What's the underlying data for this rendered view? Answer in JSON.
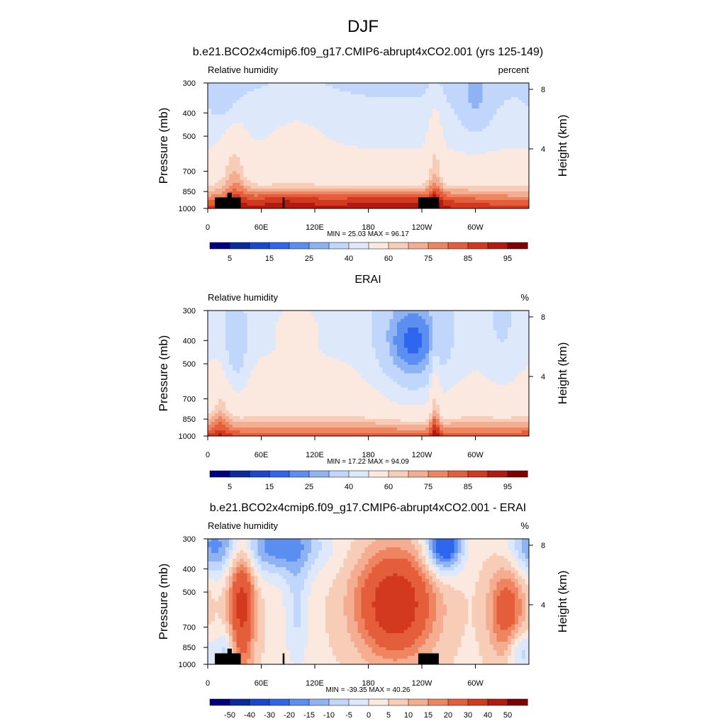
{
  "figure_title": "DJF",
  "colors": {
    "rh": [
      "#000080",
      "#0a2aa0",
      "#1848d0",
      "#2e66ee",
      "#5a8ef0",
      "#8fb2f2",
      "#c0d6fa",
      "#dde9fb",
      "#fbe9df",
      "#f8cdb8",
      "#f4ad90",
      "#ee8560",
      "#e45e3c",
      "#d2391e",
      "#b01a10",
      "#7f0000"
    ],
    "diff": [
      "#000080",
      "#0a2aa0",
      "#1848d0",
      "#2e66ee",
      "#5a8ef0",
      "#8fb2f2",
      "#c0d6fa",
      "#dde9fb",
      "#fbe9df",
      "#f8cdb8",
      "#f4ad90",
      "#ee8560",
      "#e45e3c",
      "#d2391e",
      "#b01a10",
      "#7f0000"
    ],
    "topography": "#000000"
  },
  "chart_data": [
    {
      "type": "heatmap",
      "title": "b.e21.BCO2x4cmip6.f09_g17.CMIP6-abrupt4xCO2.001 (yrs 125-149)",
      "left_label": "Relative humidity",
      "right_label": "percent",
      "ylabel": "Pressure (mb)",
      "y2label": "Height (km)",
      "xticks": [
        "0",
        "60E",
        "120E",
        "180",
        "120W",
        "60W"
      ],
      "xtick_values": [
        0,
        60,
        120,
        180,
        240,
        300
      ],
      "xlim": [
        0,
        360
      ],
      "yticks": [
        "300",
        "400",
        "500",
        "700",
        "850",
        "1000"
      ],
      "ytick_values": [
        300,
        400,
        500,
        700,
        850,
        1000
      ],
      "ylim": [
        1000,
        300
      ],
      "yscale": "log",
      "y2ticks": [
        "8",
        "4"
      ],
      "y2tick_values": [
        8,
        4
      ],
      "stats": "MIN =  25.03  MAX =  96.17",
      "min": 25.03,
      "max": 96.17,
      "colorbar_labels": [
        "5",
        "15",
        "25",
        "40",
        "60",
        "75",
        "85",
        "95"
      ],
      "levels": [
        0,
        5,
        10,
        15,
        20,
        25,
        30,
        40,
        50,
        60,
        65,
        70,
        75,
        80,
        85,
        90,
        95,
        100
      ],
      "model": "rh_model"
    },
    {
      "type": "heatmap",
      "title": "ERAI",
      "left_label": "Relative humidity",
      "right_label": "%",
      "ylabel": "Pressure (mb)",
      "y2label": "Height (km)",
      "xticks": [
        "0",
        "60E",
        "120E",
        "180",
        "120W",
        "60W"
      ],
      "xtick_values": [
        0,
        60,
        120,
        180,
        240,
        300
      ],
      "xlim": [
        0,
        360
      ],
      "yticks": [
        "300",
        "400",
        "500",
        "700",
        "850",
        "1000"
      ],
      "ytick_values": [
        300,
        400,
        500,
        700,
        850,
        1000
      ],
      "ylim": [
        1000,
        300
      ],
      "yscale": "log",
      "y2ticks": [
        "8",
        "4"
      ],
      "y2tick_values": [
        8,
        4
      ],
      "stats": "MIN =  17.22  MAX =  94.09",
      "min": 17.22,
      "max": 94.09,
      "colorbar_labels": [
        "5",
        "15",
        "25",
        "40",
        "60",
        "75",
        "85",
        "95"
      ],
      "levels": [
        0,
        5,
        10,
        15,
        20,
        25,
        30,
        40,
        50,
        60,
        65,
        70,
        75,
        80,
        85,
        90,
        95,
        100
      ],
      "model": "rh_obs"
    },
    {
      "type": "heatmap",
      "title": "b.e21.BCO2x4cmip6.f09_g17.CMIP6-abrupt4xCO2.001 - ERAI",
      "left_label": "Relative humidity",
      "right_label": "%",
      "ylabel": "Pressure (mb)",
      "y2label": "Height (km)",
      "xticks": [
        "0",
        "60E",
        "120E",
        "180",
        "120W",
        "60W"
      ],
      "xtick_values": [
        0,
        60,
        120,
        180,
        240,
        300
      ],
      "xlim": [
        0,
        360
      ],
      "yticks": [
        "300",
        "400",
        "500",
        "700",
        "850",
        "1000"
      ],
      "ytick_values": [
        300,
        400,
        500,
        700,
        850,
        1000
      ],
      "ylim": [
        1000,
        300
      ],
      "yscale": "log",
      "y2ticks": [
        "8",
        "4"
      ],
      "y2tick_values": [
        8,
        4
      ],
      "stats": "MIN = -39.35  MAX =  40.26",
      "min": -39.35,
      "max": 40.26,
      "colorbar_labels": [
        "-50",
        "-40",
        "-30",
        "-20",
        "-15",
        "-10",
        "-5",
        "0",
        "5",
        "10",
        "15",
        "20",
        "30",
        "40",
        "50"
      ],
      "levels": [
        -60,
        -50,
        -40,
        -30,
        -20,
        -15,
        -10,
        -5,
        0,
        5,
        10,
        15,
        20,
        30,
        40,
        50,
        60
      ],
      "model": "rh_diff"
    }
  ]
}
